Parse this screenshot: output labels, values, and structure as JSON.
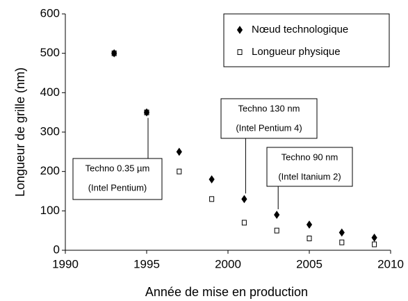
{
  "chart_data": {
    "type": "scatter",
    "xlabel": "Année de mise en production",
    "ylabel": "Longueur de grille (nm)",
    "xlim": [
      1990,
      2010
    ],
    "xticks": [
      1990,
      1995,
      2000,
      2005,
      2010
    ],
    "ylim": [
      0,
      600
    ],
    "yticks": [
      0,
      100,
      200,
      300,
      400,
      500,
      600
    ],
    "legend": "upper right",
    "series": [
      {
        "name": "Nœud technologique",
        "color": "#000000",
        "marker": "diamond",
        "x": [
          1993,
          1995,
          1997,
          1999,
          2001,
          2003,
          2005,
          2007,
          2009
        ],
        "values": [
          500,
          350,
          250,
          180,
          130,
          90,
          65,
          45,
          32
        ]
      },
      {
        "name": "Longueur physique",
        "color": "#000000",
        "marker": "square",
        "x": [
          1993,
          1995,
          1997,
          1999,
          2001,
          2003,
          2005,
          2007,
          2009
        ],
        "values": [
          500,
          350,
          200,
          130,
          70,
          50,
          30,
          20,
          15
        ]
      }
    ],
    "annotations": [
      [
        "Techno 0.35 µm",
        "(Intel Pentium)"
      ],
      [
        "Techno 130 nm",
        "(Intel Pentium 4)"
      ],
      [
        "Techno 90 nm",
        "(Intel Itanium 2)"
      ]
    ]
  }
}
